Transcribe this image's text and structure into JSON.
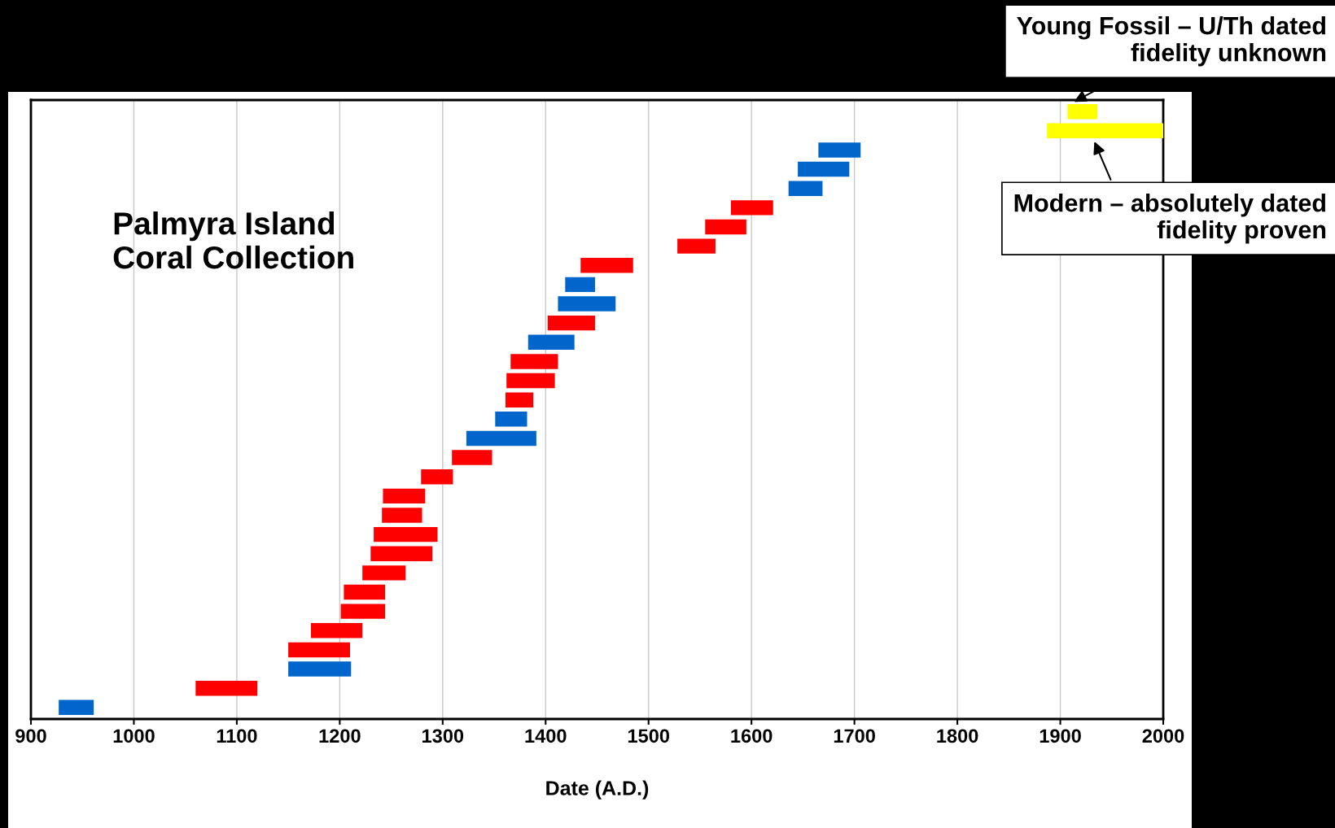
{
  "chart_data": {
    "type": "bar",
    "orientation": "horizontal",
    "xlabel": "Date (A.D.)",
    "categories": [
      null,
      null,
      null,
      null,
      null,
      null,
      null,
      null,
      null,
      null,
      null,
      null,
      null,
      null,
      null,
      null,
      null,
      null,
      null,
      null,
      null,
      null,
      null,
      null,
      null,
      null,
      null,
      null,
      null,
      null,
      null,
      null
    ],
    "base": [
      1907,
      1887,
      1665,
      1645,
      1636,
      1580,
      1555,
      1528,
      1434,
      1419,
      1412,
      1402,
      1383,
      1366,
      1362,
      1361,
      1351,
      1323,
      1309,
      1279,
      1242,
      1241,
      1233,
      1230,
      1222,
      1204,
      1201,
      1172,
      1150,
      1150,
      1060,
      927
    ],
    "values": [
      29,
      113,
      41,
      50,
      33,
      41,
      40,
      37,
      51,
      29,
      56,
      46,
      45,
      46,
      47,
      27,
      31,
      68,
      39,
      31,
      41,
      39,
      62,
      60,
      42,
      40,
      43,
      50,
      60,
      61,
      60,
      34
    ],
    "colors": [
      "#ffff00",
      "#ffff00",
      "#0066cc",
      "#0066cc",
      "#0066cc",
      "#ff0000",
      "#ff0000",
      "#ff0000",
      "#ff0000",
      "#0066cc",
      "#0066cc",
      "#ff0000",
      "#0066cc",
      "#ff0000",
      "#ff0000",
      "#ff0000",
      "#0066cc",
      "#0066cc",
      "#ff0000",
      "#ff0000",
      "#ff0000",
      "#ff0000",
      "#ff0000",
      "#ff0000",
      "#ff0000",
      "#ff0000",
      "#ff0000",
      "#ff0000",
      "#ff0000",
      "#0066cc",
      "#ff0000",
      "#0066cc"
    ],
    "xlim": [
      900,
      2000
    ],
    "xticks": [
      900,
      1000,
      1100,
      1200,
      1300,
      1400,
      1500,
      1600,
      1700,
      1800,
      1900,
      2000
    ],
    "grid": "x",
    "tick_labels": "x",
    "annotations": [
      "Palmyra Island\nCoral Collection",
      "Young Fossil – U/Th dated\nfidelity unknown",
      "Modern – absolutely dated\nfidelity proven"
    ]
  }
}
